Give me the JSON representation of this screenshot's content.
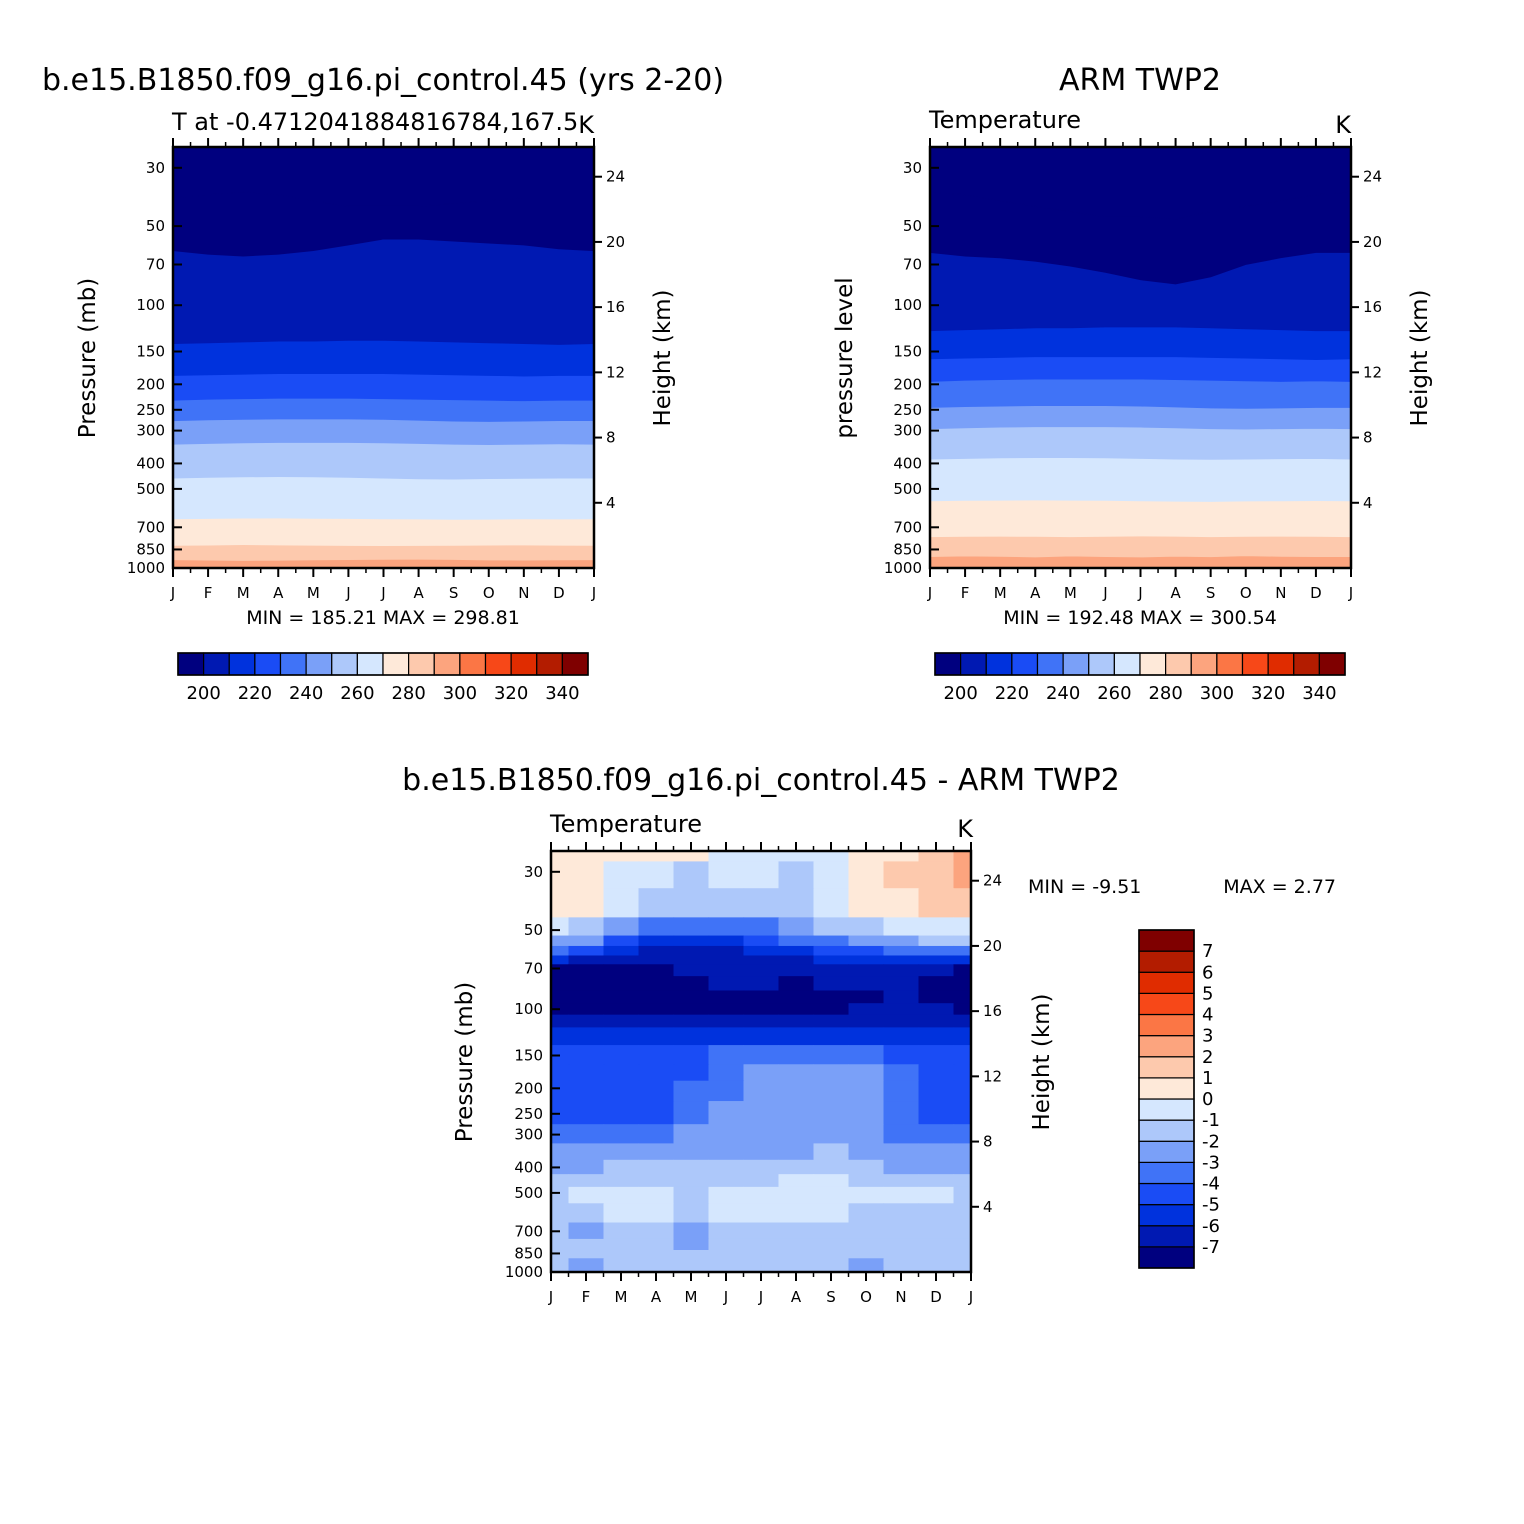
{
  "colors": {
    "temperature": [
      "#00007f",
      "#0019b2",
      "#0032dd",
      "#1a4cf5",
      "#4073f7",
      "#7aa0f8",
      "#adc8fa",
      "#d5e7fe",
      "#fee9d9",
      "#fdc9ad",
      "#fca47e",
      "#fb7645",
      "#f74818",
      "#e02c00",
      "#b31c00",
      "#7f0000"
    ],
    "difference": [
      "#00007f",
      "#0019b2",
      "#0032dd",
      "#1a4cf5",
      "#4073f7",
      "#7aa0f8",
      "#adc8fa",
      "#d5e7fe",
      "#fee9d9",
      "#fdc9ad",
      "#fca47e",
      "#fb7645",
      "#f74818",
      "#e02c00",
      "#b31c00",
      "#7f0000"
    ]
  },
  "chart_data": [
    {
      "type": "contour",
      "title": "b.e15.B1850.f09_g16.pi_control.45 (yrs 2-20)",
      "subtitle_left": "T at -0.4712041884816784,167.5",
      "units": "K",
      "ylabel": "Pressure (mb)",
      "ylabel_right": "Height (km)",
      "x_ticks": [
        "J",
        "F",
        "M",
        "A",
        "M",
        "J",
        "J",
        "A",
        "S",
        "O",
        "N",
        "D",
        "J"
      ],
      "pressure_ticks": [
        "30",
        "50",
        "70",
        "100",
        "150",
        "200",
        "250",
        "300",
        "400",
        "500",
        "700",
        "850",
        "1000"
      ],
      "height_ticks": [
        "24",
        "20",
        "16",
        "12",
        "8",
        "4"
      ],
      "ylim_mb": [
        1000,
        25
      ],
      "stats_label": "MIN =  185.21  MAX =  298.81",
      "min": 185.21,
      "max": 298.81,
      "colorbar_ticks": [
        "200",
        "220",
        "240",
        "260",
        "280",
        "300",
        "320",
        "340"
      ],
      "colorbar_edges": [
        190,
        200,
        210,
        220,
        230,
        240,
        250,
        260,
        270,
        280,
        290,
        300,
        310,
        320,
        330,
        340,
        350
      ],
      "boundary_levels": [
        290,
        280,
        270,
        260,
        250,
        240,
        230,
        220,
        210,
        200,
        195
      ],
      "boundaries_mb": [
        [
          930,
          933,
          936,
          934,
          931,
          929,
          927,
          926,
          928,
          932,
          933,
          931,
          930
        ],
        [
          820,
          818,
          815,
          817,
          819,
          821,
          822,
          821,
          820,
          818,
          817,
          819,
          820
        ],
        [
          650,
          648,
          646,
          645,
          647,
          648,
          650,
          651,
          653,
          652,
          650,
          651,
          650
        ],
        [
          455,
          452,
          450,
          449,
          450,
          452,
          455,
          458,
          459,
          457,
          456,
          455,
          455
        ],
        [
          338,
          336,
          334,
          333,
          333,
          333,
          334,
          336,
          338,
          339,
          338,
          337,
          338
        ],
        [
          275,
          273,
          272,
          271,
          271,
          271,
          272,
          274,
          276,
          277,
          276,
          275,
          275
        ],
        [
          230,
          228,
          227,
          226,
          226,
          226,
          227,
          228,
          229,
          230,
          231,
          230,
          230
        ],
        [
          185,
          184,
          183,
          182,
          182,
          182,
          182,
          183,
          184,
          185,
          186,
          185,
          185
        ],
        [
          140,
          139,
          138,
          137,
          137,
          136,
          136,
          137,
          138,
          139,
          140,
          141,
          140
        ],
        [
          62,
          64,
          65,
          64,
          62,
          59,
          56,
          56,
          57,
          58,
          59,
          61,
          62
        ],
        [
          39,
          38,
          37,
          38,
          40,
          42,
          42,
          42,
          41,
          40,
          39,
          39,
          39
        ]
      ]
    },
    {
      "type": "contour",
      "title": "ARM TWP2",
      "subtitle_left": "Temperature",
      "units": "K",
      "ylabel": "pressure level",
      "ylabel_right": "Height (km)",
      "x_ticks": [
        "J",
        "F",
        "M",
        "A",
        "M",
        "J",
        "J",
        "A",
        "S",
        "O",
        "N",
        "D",
        "J"
      ],
      "pressure_ticks": [
        "30",
        "50",
        "70",
        "100",
        "150",
        "200",
        "250",
        "300",
        "400",
        "500",
        "700",
        "850",
        "1000"
      ],
      "height_ticks": [
        "24",
        "20",
        "16",
        "12",
        "8",
        "4"
      ],
      "ylim_mb": [
        1000,
        25
      ],
      "stats_label": "MIN =  192.48  MAX =  300.54",
      "min": 192.48,
      "max": 300.54,
      "colorbar_ticks": [
        "200",
        "220",
        "240",
        "260",
        "280",
        "300",
        "320",
        "340"
      ],
      "colorbar_edges": [
        190,
        200,
        210,
        220,
        230,
        240,
        250,
        260,
        270,
        280,
        290,
        300,
        310,
        320,
        330,
        340,
        350
      ],
      "boundary_levels": [
        290,
        280,
        270,
        260,
        250,
        240,
        230,
        220,
        210,
        200,
        195
      ],
      "boundaries_mb": [
        [
          905,
          900,
          903,
          908,
          900,
          905,
          908,
          902,
          906,
          898,
          903,
          905,
          905
        ],
        [
          760,
          758,
          757,
          758,
          760,
          758,
          755,
          757,
          760,
          758,
          757,
          758,
          760
        ],
        [
          555,
          553,
          552,
          551,
          552,
          553,
          555,
          557,
          558,
          556,
          555,
          554,
          555
        ],
        [
          385,
          383,
          381,
          380,
          380,
          381,
          383,
          385,
          386,
          385,
          384,
          383,
          385
        ],
        [
          295,
          293,
          291,
          290,
          290,
          290,
          291,
          293,
          295,
          296,
          295,
          294,
          295
        ],
        [
          245,
          243,
          242,
          241,
          241,
          241,
          242,
          244,
          246,
          247,
          246,
          245,
          245
        ],
        [
          195,
          193,
          192,
          191,
          191,
          191,
          191,
          192,
          193,
          194,
          195,
          194,
          195
        ],
        [
          160,
          159,
          158,
          157,
          157,
          157,
          157,
          157,
          158,
          159,
          160,
          161,
          160
        ],
        [
          125,
          124,
          123,
          122,
          122,
          121,
          121,
          121,
          122,
          123,
          124,
          125,
          125
        ],
        [
          63,
          65,
          66,
          68,
          71,
          75,
          80,
          83,
          78,
          70,
          66,
          63,
          63
        ],
        [
          37,
          38,
          40,
          42,
          44,
          46,
          46,
          47,
          44,
          42,
          40,
          38,
          37
        ]
      ]
    },
    {
      "type": "contour",
      "title": "b.e15.B1850.f09_g16.pi_control.45 - ARM TWP2",
      "subtitle_left": "Temperature",
      "units": "K",
      "ylabel": "Pressure (mb)",
      "ylabel_right": "Height (km)",
      "x_ticks": [
        "J",
        "F",
        "M",
        "A",
        "M",
        "J",
        "J",
        "A",
        "S",
        "O",
        "N",
        "D",
        "J"
      ],
      "pressure_ticks": [
        "30",
        "50",
        "70",
        "100",
        "150",
        "200",
        "250",
        "300",
        "400",
        "500",
        "700",
        "850",
        "1000"
      ],
      "height_ticks": [
        "24",
        "20",
        "16",
        "12",
        "8",
        "4"
      ],
      "ylim_mb": [
        1000,
        25
      ],
      "stats_label_min": "MIN =   -9.51",
      "stats_label_max": "MAX =     2.77",
      "min": -9.51,
      "max": 2.77,
      "colorbar_ticks": [
        "7",
        "6",
        "5",
        "4",
        "3",
        "2",
        "1",
        "0",
        "-1",
        "-2",
        "-3",
        "-4",
        "-5",
        "-6",
        "-7"
      ],
      "colorbar_edges": [
        -8,
        -7,
        -6,
        -5,
        -4,
        -3,
        -2,
        -1,
        0,
        1,
        2,
        3,
        4,
        5,
        6,
        7,
        8
      ],
      "grid_mb": [
        25,
        30,
        40,
        50,
        55,
        60,
        65,
        70,
        80,
        90,
        100,
        110,
        125,
        150,
        175,
        200,
        250,
        300,
        350,
        400,
        450,
        500,
        600,
        700,
        800,
        850,
        925,
        1000
      ],
      "grid_K": [
        [
          0.7,
          0.4,
          0.1,
          0.3,
          0.2,
          -0.3,
          -0.2,
          -0.5,
          -0.8,
          0.2,
          0.8,
          1.6,
          2.6
        ],
        [
          0.6,
          0.5,
          -0.2,
          -0.6,
          -1.2,
          -0.8,
          -0.8,
          -1.1,
          -0.6,
          0.3,
          1.4,
          1.6,
          2.1
        ],
        [
          0.2,
          0.4,
          -0.7,
          -1.6,
          -1.8,
          -1.9,
          -1.4,
          -1.3,
          -0.8,
          0.1,
          0.4,
          1.2,
          1.6
        ],
        [
          -0.8,
          -1.1,
          -2.6,
          -3.6,
          -3.6,
          -3.6,
          -3.1,
          -2.4,
          -1.6,
          -1.1,
          -0.6,
          -0.4,
          -0.2
        ],
        [
          -2.1,
          -2.8,
          -4.3,
          -5.3,
          -5.6,
          -5.1,
          -4.6,
          -3.6,
          -3.1,
          -2.6,
          -2.1,
          -1.9,
          -1.6
        ],
        [
          -3.6,
          -4.6,
          -5.6,
          -6.1,
          -6.6,
          -6.1,
          -5.6,
          -5.1,
          -4.6,
          -4.1,
          -3.6,
          -3.6,
          -3.6
        ],
        [
          -5.6,
          -6.1,
          -6.6,
          -6.6,
          -6.6,
          -6.3,
          -6.1,
          -6.1,
          -5.6,
          -5.6,
          -5.1,
          -5.1,
          -5.6
        ],
        [
          -7.2,
          -7.5,
          -7.6,
          -7.1,
          -6.8,
          -6.6,
          -6.6,
          -6.3,
          -6.3,
          -6.1,
          -6.1,
          -6.3,
          -7.2
        ],
        [
          -8.3,
          -8.6,
          -8.4,
          -7.3,
          -7.1,
          -7.0,
          -6.9,
          -7.2,
          -7.0,
          -6.8,
          -6.6,
          -7.5,
          -8.4
        ],
        [
          -8.6,
          -9.0,
          -9.4,
          -7.6,
          -7.2,
          -7.4,
          -7.3,
          -7.6,
          -7.4,
          -7.1,
          -6.8,
          -7.6,
          -8.6
        ],
        [
          -7.8,
          -8.4,
          -8.6,
          -7.8,
          -7.2,
          -7.3,
          -7.2,
          -7.4,
          -7.1,
          -7.0,
          -6.9,
          -7.0,
          -7.6
        ],
        [
          -6.3,
          -6.6,
          -6.6,
          -6.4,
          -6.2,
          -6.2,
          -6.2,
          -6.2,
          -6.1,
          -6.2,
          -6.2,
          -6.2,
          -6.3
        ],
        [
          -5.3,
          -5.4,
          -5.4,
          -5.4,
          -5.2,
          -5.3,
          -5.4,
          -5.3,
          -5.2,
          -5.4,
          -5.5,
          -5.6,
          -5.3
        ],
        [
          -4.5,
          -4.4,
          -4.4,
          -4.4,
          -4.3,
          -3.7,
          -3.4,
          -3.3,
          -3.5,
          -3.7,
          -4.4,
          -4.5,
          -4.5
        ],
        [
          -4.4,
          -4.3,
          -4.3,
          -4.4,
          -4.2,
          -3.3,
          -2.9,
          -2.8,
          -2.9,
          -2.9,
          -3.6,
          -4.4,
          -4.4
        ],
        [
          -4.3,
          -4.3,
          -4.2,
          -4.2,
          -4.0,
          -3.1,
          -2.8,
          -2.8,
          -2.6,
          -2.9,
          -3.6,
          -4.2,
          -4.3
        ],
        [
          -4.2,
          -4.1,
          -4.1,
          -4.1,
          -3.5,
          -2.9,
          -2.9,
          -2.8,
          -2.7,
          -2.9,
          -3.3,
          -4.1,
          -4.2
        ],
        [
          -3.6,
          -3.4,
          -3.3,
          -3.1,
          -2.9,
          -2.6,
          -2.6,
          -2.4,
          -2.4,
          -2.6,
          -3.2,
          -3.6,
          -3.6
        ],
        [
          -2.8,
          -2.6,
          -2.5,
          -2.4,
          -2.3,
          -2.1,
          -2.1,
          -2.1,
          -2.0,
          -2.2,
          -2.5,
          -2.8,
          -2.8
        ],
        [
          -2.3,
          -2.6,
          -1.9,
          -1.9,
          -1.7,
          -1.6,
          -1.6,
          -1.6,
          -1.8,
          -1.9,
          -2.1,
          -2.4,
          -2.3
        ],
        [
          -1.8,
          -1.6,
          -1.3,
          -1.2,
          -1.3,
          -1.2,
          -1.1,
          -1.0,
          -0.9,
          -1.1,
          -1.2,
          -1.3,
          -1.5
        ],
        [
          -1.4,
          -1.0,
          -0.8,
          -1.0,
          -1.3,
          -0.7,
          -0.6,
          -0.7,
          -0.3,
          -0.8,
          -0.9,
          -1.0,
          -1.2
        ],
        [
          -1.5,
          -1.4,
          -0.9,
          -0.7,
          -1.6,
          -0.8,
          -0.6,
          -0.9,
          -0.8,
          -1.1,
          -1.2,
          -1.3,
          -1.4
        ],
        [
          -1.6,
          -2.2,
          -1.3,
          -1.1,
          -2.4,
          -1.6,
          -1.2,
          -1.3,
          -1.5,
          -1.7,
          -1.4,
          -1.2,
          -1.3
        ],
        [
          -1.5,
          -1.7,
          -1.1,
          -1.4,
          -2.2,
          -1.5,
          -1.3,
          -1.4,
          -1.3,
          -1.5,
          -1.3,
          -1.1,
          -1.2
        ],
        [
          -1.4,
          -1.6,
          -1.3,
          -1.5,
          -1.6,
          -1.3,
          -1.4,
          -1.5,
          -1.7,
          -1.8,
          -1.4,
          -1.2,
          -1.3
        ],
        [
          -1.5,
          -2.4,
          -1.6,
          -1.7,
          -1.4,
          -1.5,
          -1.6,
          -1.8,
          -1.9,
          -2.3,
          -1.8,
          -1.6,
          -1.5
        ],
        [
          -1.8,
          -2.1,
          -1.9,
          -2.0,
          -1.8,
          -1.9,
          -2.0,
          -2.0,
          -1.9,
          -2.3,
          -2.0,
          -1.8,
          -1.9
        ]
      ]
    }
  ]
}
